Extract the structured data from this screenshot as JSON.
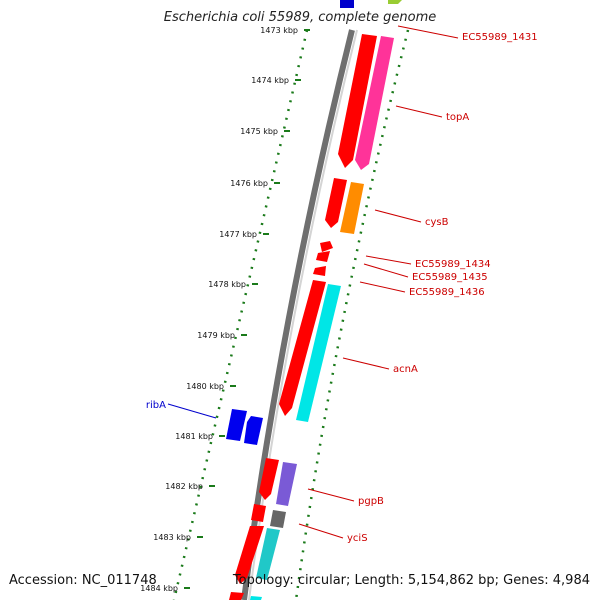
{
  "title": "Escherichia coli 55989, complete genome",
  "footer": {
    "accession": "Accession: NC_011748",
    "topology": "Topology: circular; Length: 5,154,862 bp; Genes: 4,984"
  },
  "colors": {
    "forward_gene": "#ff0000",
    "label_forward": "#cc0000",
    "label_reverse": "#0000cc",
    "reverse_gene": "#0000ee",
    "tick": "#1a7a1a",
    "backbone": "#808080"
  },
  "ticks": [
    "1473 kbp",
    "1474 kbp",
    "1475 kbp",
    "1476 kbp",
    "1477 kbp",
    "1478 kbp",
    "1479 kbp",
    "1480 kbp",
    "1481 kbp",
    "1482 kbp",
    "1483 kbp",
    "1484 kbp"
  ],
  "gene_labels": [
    {
      "name": "EC55989_1431",
      "side": "right"
    },
    {
      "name": "topA",
      "side": "right"
    },
    {
      "name": "cysB",
      "side": "right"
    },
    {
      "name": "EC55989_1434",
      "side": "right"
    },
    {
      "name": "EC55989_1435",
      "side": "right"
    },
    {
      "name": "EC55989_1436",
      "side": "right"
    },
    {
      "name": "acnA",
      "side": "right"
    },
    {
      "name": "ribA",
      "side": "left"
    },
    {
      "name": "pgpB",
      "side": "right"
    },
    {
      "name": "yciS",
      "side": "right"
    }
  ]
}
